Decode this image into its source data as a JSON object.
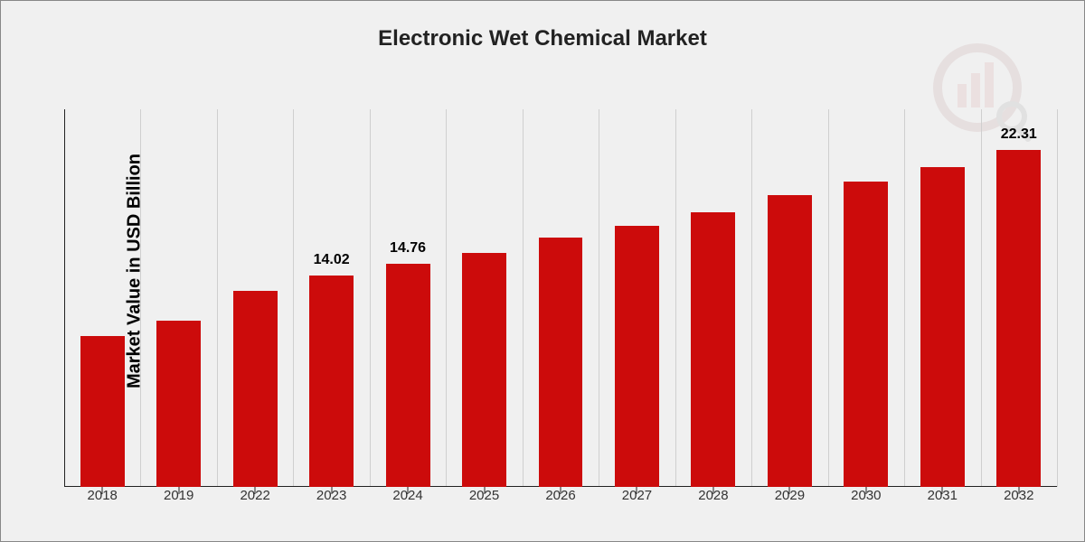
{
  "chart": {
    "type": "bar",
    "title": "Electronic Wet Chemical Market",
    "title_fontsize": 24,
    "ylabel": "Market Value in USD Billion",
    "ylabel_fontsize": 20,
    "background_color": "#f0f0f0",
    "border_color": "#888888",
    "axis_color": "#222222",
    "grid_color": "#cfcfcf",
    "bar_color": "#cc0b0b",
    "text_color": "#000000",
    "xlabel_fontsize": 15,
    "datalabel_fontsize": 16,
    "ylim_max": 25,
    "bar_width_ratio": 0.58,
    "categories": [
      "2018",
      "2019",
      "2022",
      "2023",
      "2024",
      "2025",
      "2026",
      "2027",
      "2028",
      "2029",
      "2030",
      "2031",
      "2032"
    ],
    "values": [
      10.0,
      11.0,
      13.0,
      14.02,
      14.76,
      15.5,
      16.5,
      17.3,
      18.2,
      19.3,
      20.2,
      21.2,
      22.31
    ],
    "visible_labels": {
      "3": "14.02",
      "4": "14.76",
      "12": "22.31"
    }
  },
  "watermark": {
    "present": true,
    "colors": {
      "bars": "#bc2d2d",
      "ring": "#7a2a2a",
      "lens": "#3a3a3a"
    }
  }
}
